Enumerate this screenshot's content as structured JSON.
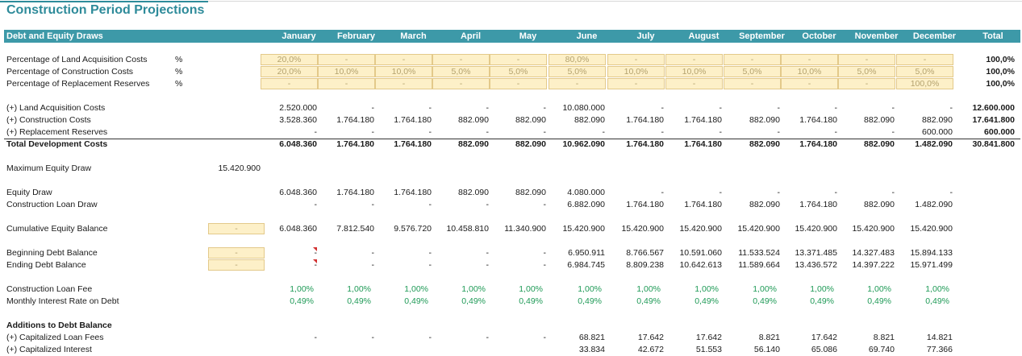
{
  "title": "Construction Period Projections",
  "header": {
    "label": "Debt and Equity Draws",
    "months": [
      "January",
      "February",
      "March",
      "April",
      "May",
      "June",
      "July",
      "August",
      "September",
      "October",
      "November",
      "December"
    ],
    "total": "Total"
  },
  "pct_rows": [
    {
      "label": "Percentage of Land Acquisition Costs",
      "unit": "%",
      "values": [
        "20,0%",
        "-",
        "-",
        "-",
        "-",
        "80,0%",
        "-",
        "-",
        "-",
        "-",
        "-",
        "-"
      ],
      "total": "100,0%"
    },
    {
      "label": "Percentage of Construction Costs",
      "unit": "%",
      "values": [
        "20,0%",
        "10,0%",
        "10,0%",
        "5,0%",
        "5,0%",
        "5,0%",
        "10,0%",
        "10,0%",
        "5,0%",
        "10,0%",
        "5,0%",
        "5,0%"
      ],
      "total": "100,0%"
    },
    {
      "label": "Percentage of Replacement Reserves",
      "unit": "%",
      "values": [
        "-",
        "-",
        "-",
        "-",
        "-",
        "-",
        "-",
        "-",
        "-",
        "-",
        "-",
        "100,0%"
      ],
      "total": "100,0%"
    }
  ],
  "cost_rows": [
    {
      "label": "(+) Land Acquisition Costs",
      "values": [
        "2.520.000",
        "-",
        "-",
        "-",
        "-",
        "10.080.000",
        "-",
        "-",
        "-",
        "-",
        "-",
        "-"
      ],
      "total": "12.600.000"
    },
    {
      "label": "(+) Construction Costs",
      "values": [
        "3.528.360",
        "1.764.180",
        "1.764.180",
        "882.090",
        "882.090",
        "882.090",
        "1.764.180",
        "1.764.180",
        "882.090",
        "1.764.180",
        "882.090",
        "882.090"
      ],
      "total": "17.641.800"
    },
    {
      "label": "(+) Replacement Reserves",
      "values": [
        "-",
        "-",
        "-",
        "-",
        "-",
        "-",
        "-",
        "-",
        "-",
        "-",
        "-",
        "600.000"
      ],
      "total": "600.000"
    }
  ],
  "total_dev": {
    "label": "Total Development Costs",
    "values": [
      "6.048.360",
      "1.764.180",
      "1.764.180",
      "882.090",
      "882.090",
      "10.962.090",
      "1.764.180",
      "1.764.180",
      "882.090",
      "1.764.180",
      "882.090",
      "1.482.090"
    ],
    "total": "30.841.800"
  },
  "max_equity": {
    "label": "Maximum Equity Draw",
    "value": "15.420.900"
  },
  "draw_rows": [
    {
      "label": "Equity Draw",
      "values": [
        "6.048.360",
        "1.764.180",
        "1.764.180",
        "882.090",
        "882.090",
        "4.080.000",
        "-",
        "-",
        "-",
        "-",
        "-",
        "-"
      ]
    },
    {
      "label": "Construction Loan Draw",
      "values": [
        "-",
        "-",
        "-",
        "-",
        "-",
        "6.882.090",
        "1.764.180",
        "1.764.180",
        "882.090",
        "1.764.180",
        "882.090",
        "1.482.090"
      ]
    }
  ],
  "cum_equity": {
    "label": "Cumulative Equity Balance",
    "input": "-",
    "values": [
      "6.048.360",
      "7.812.540",
      "9.576.720",
      "10.458.810",
      "11.340.900",
      "15.420.900",
      "15.420.900",
      "15.420.900",
      "15.420.900",
      "15.420.900",
      "15.420.900",
      "15.420.900"
    ]
  },
  "debt_rows": [
    {
      "label": "Beginning Debt Balance",
      "input": "-",
      "values": [
        "-",
        "-",
        "-",
        "-",
        "-",
        "6.950.911",
        "8.766.567",
        "10.591.060",
        "11.533.524",
        "13.371.485",
        "14.327.483",
        "15.894.133"
      ]
    },
    {
      "label": "Ending Debt Balance",
      "input": "-",
      "values": [
        "-",
        "-",
        "-",
        "-",
        "-",
        "6.984.745",
        "8.809.238",
        "10.642.613",
        "11.589.664",
        "13.436.572",
        "14.397.222",
        "15.971.499"
      ]
    }
  ],
  "rate_rows": [
    {
      "label": "Construction Loan Fee",
      "values": [
        "1,00%",
        "1,00%",
        "1,00%",
        "1,00%",
        "1,00%",
        "1,00%",
        "1,00%",
        "1,00%",
        "1,00%",
        "1,00%",
        "1,00%",
        "1,00%"
      ]
    },
    {
      "label": "Monthly Interest Rate on Debt",
      "values": [
        "0,49%",
        "0,49%",
        "0,49%",
        "0,49%",
        "0,49%",
        "0,49%",
        "0,49%",
        "0,49%",
        "0,49%",
        "0,49%",
        "0,49%",
        "0,49%"
      ]
    }
  ],
  "additions": {
    "heading": "Additions to Debt Balance",
    "rows": [
      {
        "label": "(+) Capitalized Loan Fees",
        "values": [
          "-",
          "-",
          "-",
          "-",
          "-",
          "68.821",
          "17.642",
          "17.642",
          "8.821",
          "17.642",
          "8.821",
          "14.821"
        ]
      },
      {
        "label": "(+) Capitalized Interest",
        "values": [
          "",
          "",
          "",
          "",
          "",
          "33.834",
          "42.672",
          "51.553",
          "56.140",
          "65.086",
          "69.740",
          "77.366"
        ]
      }
    ]
  },
  "colors": {
    "accent": "#3d99a8",
    "title": "#2e8b9a",
    "input_fill": "#fdf0c8",
    "green": "#1f9a57"
  }
}
